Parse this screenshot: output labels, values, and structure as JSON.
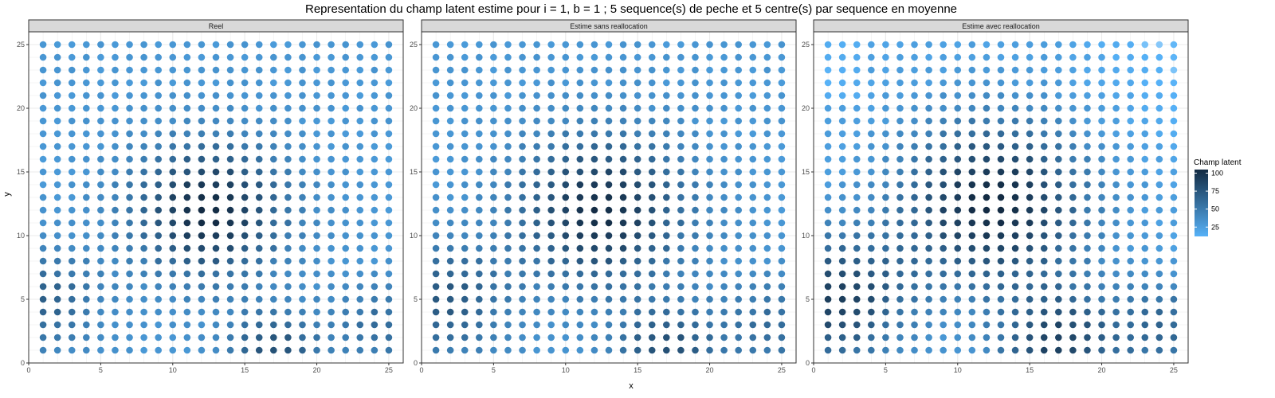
{
  "chart_data": {
    "type": "scatter",
    "title": "Representation du champ latent estime pour i = 1, b = 1 ; 5 sequence(s) de peche et 5 centre(s) par sequence en moyenne",
    "xlabel": "x",
    "ylabel": "y",
    "xlim": [
      0,
      26
    ],
    "ylim": [
      0,
      26
    ],
    "xticks": [
      0,
      5,
      10,
      15,
      20,
      25
    ],
    "yticks": [
      0,
      5,
      10,
      15,
      20,
      25
    ],
    "grid": true,
    "grid_x": [
      1,
      25
    ],
    "grid_y": [
      1,
      25
    ],
    "legend": {
      "title": "Champ latent",
      "placement": "right",
      "ticks": [
        25,
        50,
        75,
        100
      ],
      "range": [
        12,
        105
      ],
      "color_low": "#56B1F7",
      "color_high": "#132B43"
    },
    "panels": [
      {
        "name": "Reel",
        "base": 30,
        "lowfloor": 22,
        "peaks": [
          {
            "x": 12.5,
            "y": 12,
            "amp": 75,
            "sigma": 3.6
          },
          {
            "x": 1,
            "y": 5,
            "amp": 40,
            "sigma": 2.6
          },
          {
            "x": 17,
            "y": 1,
            "amp": 50,
            "sigma": 2.2
          },
          {
            "x": 24.5,
            "y": 3,
            "amp": 30,
            "sigma": 2.2
          }
        ]
      },
      {
        "name": "Estime sans reallocation",
        "base": 30,
        "lowfloor": 22,
        "peaks": [
          {
            "x": 12.5,
            "y": 12,
            "amp": 72,
            "sigma": 4.0
          },
          {
            "x": 1.5,
            "y": 5,
            "amp": 45,
            "sigma": 3.0
          },
          {
            "x": 17,
            "y": 1,
            "amp": 50,
            "sigma": 2.5
          },
          {
            "x": 24.5,
            "y": 3,
            "amp": 30,
            "sigma": 2.5
          }
        ]
      },
      {
        "name": "Estime avec reallocation",
        "base": 22,
        "lowfloor": 8,
        "peaks": [
          {
            "x": 12.5,
            "y": 12.5,
            "amp": 85,
            "sigma": 4.5
          },
          {
            "x": 1.5,
            "y": 5,
            "amp": 70,
            "sigma": 3.5
          },
          {
            "x": 17,
            "y": 1.5,
            "amp": 65,
            "sigma": 3.0
          },
          {
            "x": 24.5,
            "y": 3,
            "amp": 40,
            "sigma": 2.5
          }
        ]
      }
    ]
  }
}
